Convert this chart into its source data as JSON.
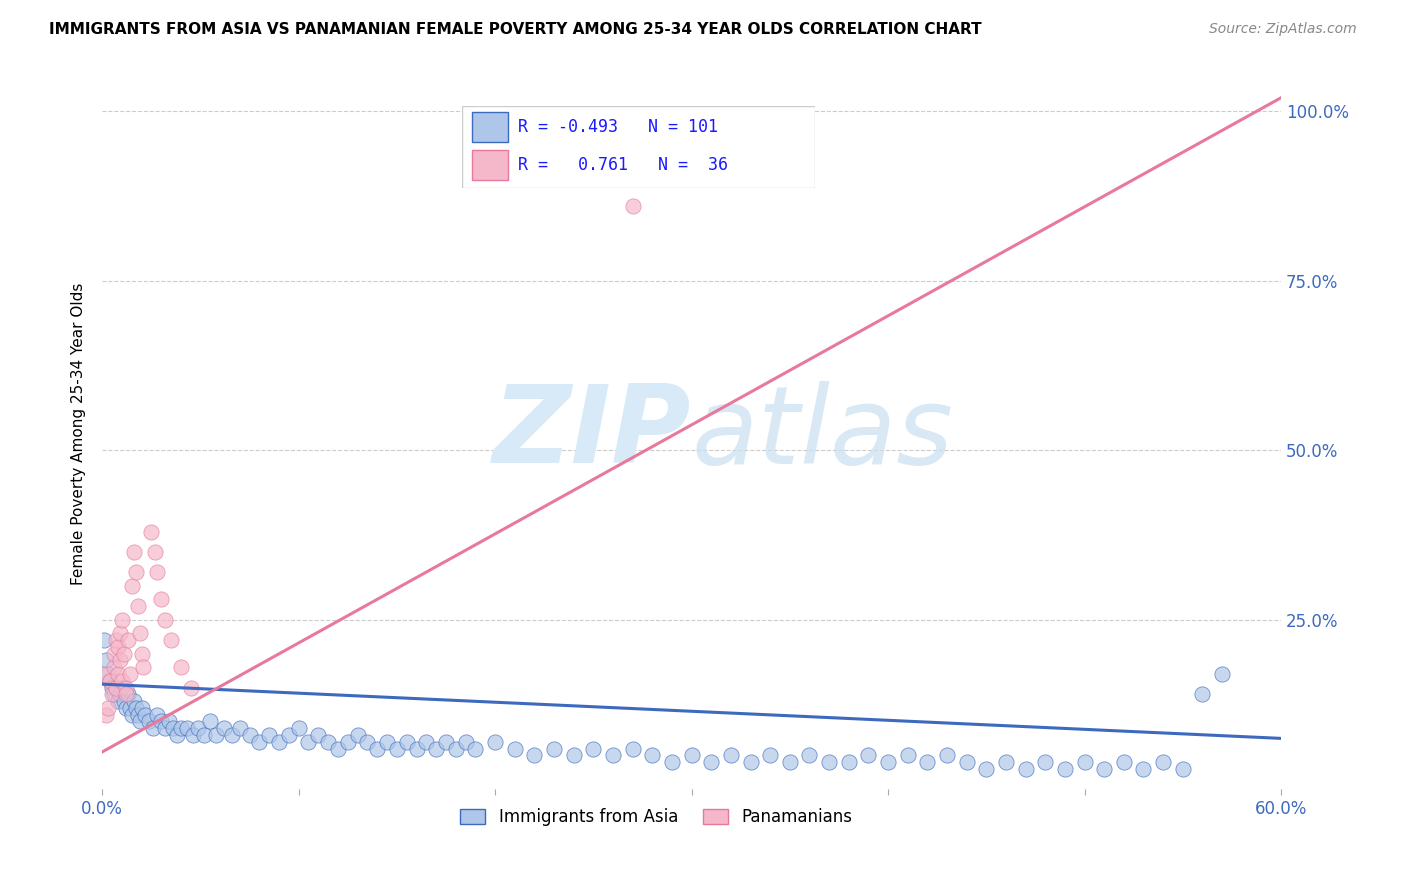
{
  "title": "IMMIGRANTS FROM ASIA VS PANAMANIAN FEMALE POVERTY AMONG 25-34 YEAR OLDS CORRELATION CHART",
  "source": "Source: ZipAtlas.com",
  "ylabel": "Female Poverty Among 25-34 Year Olds",
  "xlim": [
    0.0,
    0.6
  ],
  "ylim": [
    0.0,
    1.05
  ],
  "legend_blue_r": "-0.493",
  "legend_blue_n": "101",
  "legend_pink_r": "0.761",
  "legend_pink_n": "36",
  "blue_color": "#aec6e8",
  "pink_color": "#f5b8cb",
  "blue_line_color": "#3d6abf",
  "pink_line_color": "#e8799a",
  "watermark_zip": "ZIP",
  "watermark_atlas": "atlas",
  "watermark_color": "#d8eaf7",
  "blue_scatter_x": [
    0.001,
    0.002,
    0.003,
    0.004,
    0.005,
    0.006,
    0.007,
    0.008,
    0.009,
    0.01,
    0.011,
    0.012,
    0.013,
    0.014,
    0.015,
    0.016,
    0.017,
    0.018,
    0.019,
    0.02,
    0.022,
    0.024,
    0.026,
    0.028,
    0.03,
    0.032,
    0.034,
    0.036,
    0.038,
    0.04,
    0.043,
    0.046,
    0.049,
    0.052,
    0.055,
    0.058,
    0.062,
    0.066,
    0.07,
    0.075,
    0.08,
    0.085,
    0.09,
    0.095,
    0.1,
    0.105,
    0.11,
    0.115,
    0.12,
    0.125,
    0.13,
    0.135,
    0.14,
    0.145,
    0.15,
    0.155,
    0.16,
    0.165,
    0.17,
    0.175,
    0.18,
    0.185,
    0.19,
    0.2,
    0.21,
    0.22,
    0.23,
    0.24,
    0.25,
    0.26,
    0.27,
    0.28,
    0.29,
    0.3,
    0.31,
    0.32,
    0.33,
    0.34,
    0.35,
    0.36,
    0.37,
    0.38,
    0.39,
    0.4,
    0.41,
    0.42,
    0.43,
    0.44,
    0.45,
    0.46,
    0.47,
    0.48,
    0.49,
    0.5,
    0.51,
    0.52,
    0.53,
    0.54,
    0.55,
    0.56,
    0.57
  ],
  "blue_scatter_y": [
    0.22,
    0.19,
    0.17,
    0.16,
    0.15,
    0.14,
    0.15,
    0.13,
    0.14,
    0.15,
    0.13,
    0.12,
    0.14,
    0.12,
    0.11,
    0.13,
    0.12,
    0.11,
    0.1,
    0.12,
    0.11,
    0.1,
    0.09,
    0.11,
    0.1,
    0.09,
    0.1,
    0.09,
    0.08,
    0.09,
    0.09,
    0.08,
    0.09,
    0.08,
    0.1,
    0.08,
    0.09,
    0.08,
    0.09,
    0.08,
    0.07,
    0.08,
    0.07,
    0.08,
    0.09,
    0.07,
    0.08,
    0.07,
    0.06,
    0.07,
    0.08,
    0.07,
    0.06,
    0.07,
    0.06,
    0.07,
    0.06,
    0.07,
    0.06,
    0.07,
    0.06,
    0.07,
    0.06,
    0.07,
    0.06,
    0.05,
    0.06,
    0.05,
    0.06,
    0.05,
    0.06,
    0.05,
    0.04,
    0.05,
    0.04,
    0.05,
    0.04,
    0.05,
    0.04,
    0.05,
    0.04,
    0.04,
    0.05,
    0.04,
    0.05,
    0.04,
    0.05,
    0.04,
    0.03,
    0.04,
    0.03,
    0.04,
    0.03,
    0.04,
    0.03,
    0.04,
    0.03,
    0.04,
    0.03,
    0.14,
    0.17
  ],
  "pink_scatter_x": [
    0.001,
    0.002,
    0.003,
    0.004,
    0.005,
    0.006,
    0.006,
    0.007,
    0.007,
    0.008,
    0.008,
    0.009,
    0.009,
    0.01,
    0.01,
    0.011,
    0.012,
    0.012,
    0.013,
    0.014,
    0.015,
    0.016,
    0.017,
    0.018,
    0.019,
    0.02,
    0.021,
    0.025,
    0.027,
    0.028,
    0.03,
    0.032,
    0.035,
    0.04,
    0.045,
    0.27
  ],
  "pink_scatter_y": [
    0.17,
    0.11,
    0.12,
    0.16,
    0.14,
    0.18,
    0.2,
    0.15,
    0.22,
    0.17,
    0.21,
    0.19,
    0.23,
    0.16,
    0.25,
    0.2,
    0.15,
    0.14,
    0.22,
    0.17,
    0.3,
    0.35,
    0.32,
    0.27,
    0.23,
    0.2,
    0.18,
    0.38,
    0.35,
    0.32,
    0.28,
    0.25,
    0.22,
    0.18,
    0.15,
    0.86
  ],
  "blue_trend_x0": 0.0,
  "blue_trend_y0": 0.155,
  "blue_trend_x1": 0.6,
  "blue_trend_y1": 0.075,
  "pink_trend_x0": 0.0,
  "pink_trend_y0": 0.055,
  "pink_trend_x1": 0.6,
  "pink_trend_y1": 1.02
}
